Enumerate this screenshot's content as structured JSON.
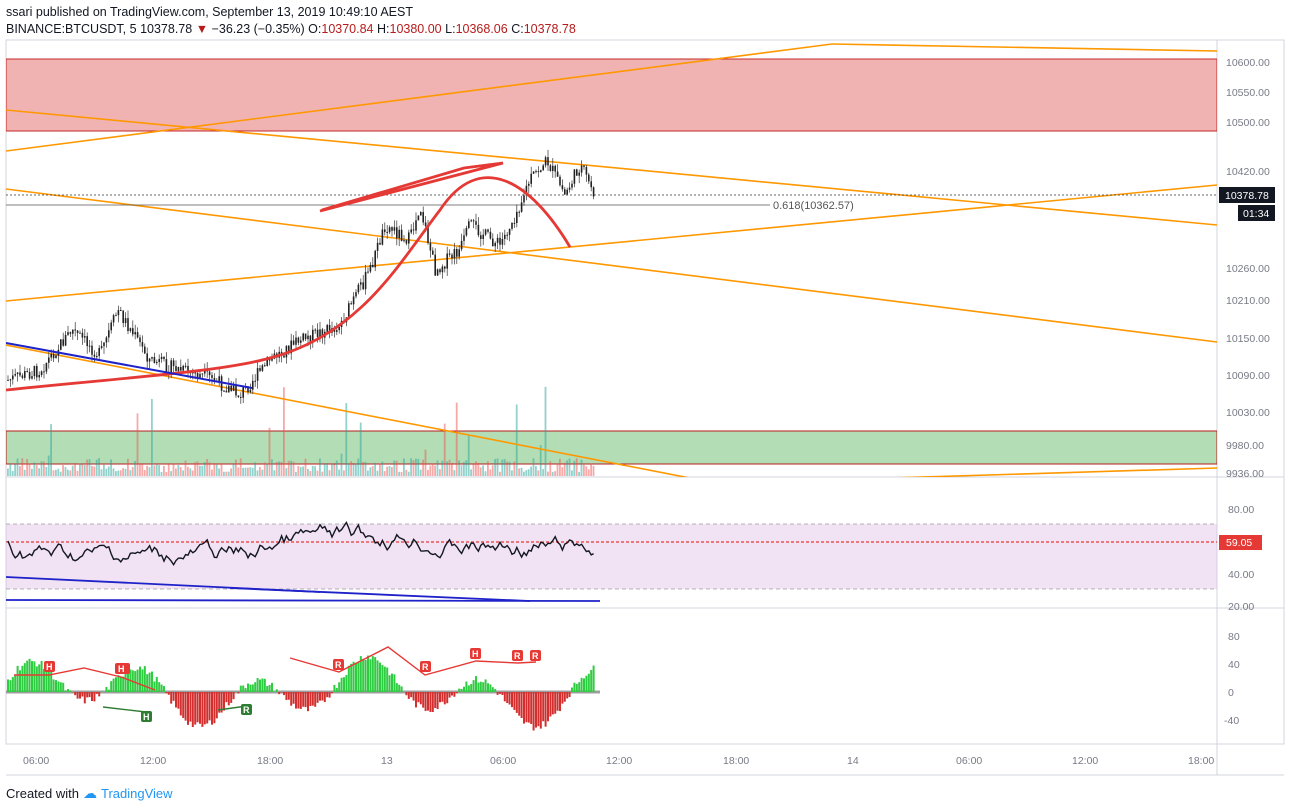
{
  "header": {
    "publish_line": "ssari published on TradingView.com, September 13, 2019 10:49:10 AEST",
    "symbol": "BINANCE:BTCUSDT, 5",
    "last": "10378.78",
    "change": "−36.23 (−0.35%)",
    "o_label": "O:",
    "o_value": "10370.84",
    "h_label": "H:",
    "h_value": "10380.00",
    "l_label": "L:",
    "l_value": "10368.06",
    "c_label": "C:",
    "c_value": "10378.78"
  },
  "price_axis": {
    "ticks": [
      "10600.00",
      "10550.00",
      "10500.00",
      "10420.00",
      "10260.00",
      "10210.00",
      "10150.00",
      "10090.00",
      "10030.00",
      "9980.00",
      "9936.00"
    ],
    "current_price": "10378.78",
    "countdown": "01:34",
    "fib_label": "0.618(10362.57)"
  },
  "rsi_axis": {
    "ticks": [
      "80.00",
      "40.00",
      "20.00"
    ],
    "current": "59.05"
  },
  "osc_axis": {
    "ticks": [
      "80",
      "40",
      "0",
      "-40"
    ]
  },
  "time_axis": {
    "ticks": [
      "06:00",
      "12:00",
      "18:00",
      "13",
      "06:00",
      "12:00",
      "18:00",
      "14",
      "06:00",
      "12:00",
      "18:00"
    ]
  },
  "markers": {
    "hidden_bearish": "H",
    "regular_bearish": "R",
    "hidden_bullish": "H",
    "regular_bullish": "R"
  },
  "colors": {
    "resistance_zone": "#e57373",
    "support_zone": "#81c784",
    "trendline_orange": "#ff9800",
    "curve_red": "#e53935",
    "trendline_blue": "#1e22c8",
    "price_tag_red": "#e53935",
    "up_candle": "#26a69a",
    "down_candle": "#ef5350"
  },
  "footer": {
    "created_with": "Created with",
    "brand": "TradingView"
  }
}
